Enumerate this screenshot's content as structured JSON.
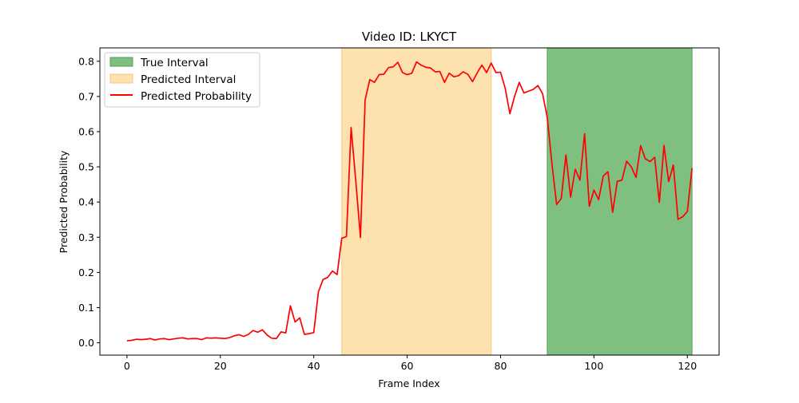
{
  "chart_data": {
    "type": "line",
    "title": "Video ID: LKYCT",
    "xlabel": "Frame Index",
    "ylabel": "Predicted Probability",
    "xlim": [
      -5.8,
      126.8
    ],
    "ylim": [
      -0.035,
      0.838
    ],
    "x_ticks": [
      0,
      20,
      40,
      60,
      80,
      100,
      120
    ],
    "y_ticks": [
      0.0,
      0.1,
      0.2,
      0.3,
      0.4,
      0.5,
      0.6,
      0.7,
      0.8
    ],
    "grid": false,
    "legend_position": "upper-left",
    "true_interval": {
      "name": "True Interval",
      "start": 90,
      "end": 121,
      "color": "#7fbf7f"
    },
    "predicted_interval": {
      "name": "Predicted Interval",
      "start": 46,
      "end": 78,
      "color": "#fde2b0"
    },
    "series": [
      {
        "name": "Predicted Probability",
        "color": "#ff0000",
        "x": [
          0,
          1,
          2,
          3,
          4,
          5,
          6,
          7,
          8,
          9,
          10,
          11,
          12,
          13,
          14,
          15,
          16,
          17,
          18,
          19,
          20,
          21,
          22,
          23,
          24,
          25,
          26,
          27,
          28,
          29,
          30,
          31,
          32,
          33,
          34,
          35,
          36,
          37,
          38,
          39,
          40,
          41,
          42,
          43,
          44,
          45,
          46,
          47,
          48,
          49,
          50,
          51,
          52,
          53,
          54,
          55,
          56,
          57,
          58,
          59,
          60,
          61,
          62,
          63,
          64,
          65,
          66,
          67,
          68,
          69,
          70,
          71,
          72,
          73,
          74,
          75,
          76,
          77,
          78,
          79,
          80,
          81,
          82,
          83,
          84,
          85,
          86,
          87,
          88,
          89,
          90,
          91,
          92,
          93,
          94,
          95,
          96,
          97,
          98,
          99,
          100,
          101,
          102,
          103,
          104,
          105,
          106,
          107,
          108,
          109,
          110,
          111,
          112,
          113,
          114,
          115,
          116,
          117,
          118,
          119,
          120,
          121
        ],
        "values": [
          0.006,
          0.007,
          0.01,
          0.009,
          0.01,
          0.012,
          0.008,
          0.011,
          0.012,
          0.009,
          0.011,
          0.013,
          0.014,
          0.011,
          0.012,
          0.012,
          0.009,
          0.014,
          0.013,
          0.014,
          0.013,
          0.012,
          0.015,
          0.02,
          0.023,
          0.018,
          0.024,
          0.035,
          0.03,
          0.037,
          0.022,
          0.013,
          0.012,
          0.031,
          0.028,
          0.105,
          0.059,
          0.071,
          0.024,
          0.026,
          0.029,
          0.145,
          0.18,
          0.186,
          0.204,
          0.194,
          0.297,
          0.302,
          0.612,
          0.46,
          0.299,
          0.69,
          0.748,
          0.74,
          0.762,
          0.763,
          0.782,
          0.784,
          0.797,
          0.768,
          0.762,
          0.766,
          0.798,
          0.789,
          0.783,
          0.781,
          0.77,
          0.771,
          0.74,
          0.766,
          0.756,
          0.759,
          0.77,
          0.763,
          0.742,
          0.767,
          0.789,
          0.768,
          0.795,
          0.768,
          0.769,
          0.723,
          0.651,
          0.7,
          0.74,
          0.71,
          0.715,
          0.72,
          0.731,
          0.708,
          0.64,
          0.51,
          0.393,
          0.41,
          0.534,
          0.414,
          0.493,
          0.462,
          0.594,
          0.388,
          0.434,
          0.407,
          0.474,
          0.486,
          0.371,
          0.459,
          0.462,
          0.516,
          0.5,
          0.47,
          0.56,
          0.523,
          0.515,
          0.527,
          0.399,
          0.561,
          0.458,
          0.505,
          0.351,
          0.358,
          0.373,
          0.496
        ]
      }
    ]
  }
}
